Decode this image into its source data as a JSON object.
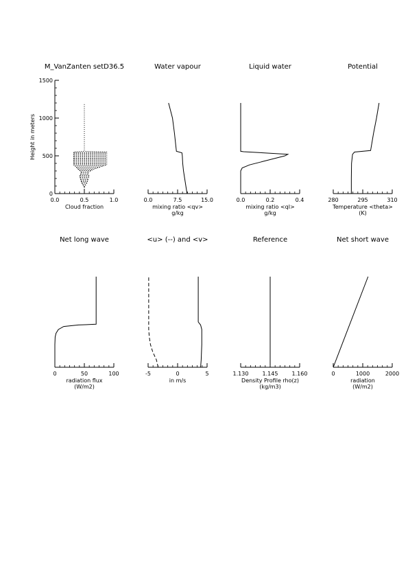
{
  "chart_data": [
    {
      "type": "line",
      "title": "M_VanZanten setD36.5",
      "xlabel": [
        "Cloud fraction"
      ],
      "ylabel": "Height in meters",
      "xlim": [
        0,
        1.0
      ],
      "ylim": [
        0,
        1500
      ],
      "xticks": [
        "0.0",
        "0.5",
        "1.0"
      ],
      "yticks": [
        "0",
        "500",
        "1000",
        "1500"
      ],
      "series": [
        {
          "style": "dotted",
          "points": [
            [
              0.5,
              0
            ],
            [
              0.5,
              80
            ],
            [
              0.45,
              150
            ],
            [
              0.42,
              230
            ],
            [
              0.45,
              280
            ],
            [
              0.4,
              320
            ],
            [
              0.35,
              360
            ],
            [
              0.32,
              380
            ],
            [
              0.32,
              420
            ],
            [
              0.32,
              460
            ],
            [
              0.32,
              500
            ],
            [
              0.32,
              550
            ],
            [
              0.5,
              560
            ],
            [
              0.5,
              1200
            ]
          ]
        },
        {
          "style": "dotted",
          "points": [
            [
              0.5,
              0
            ],
            [
              0.5,
              80
            ],
            [
              0.55,
              150
            ],
            [
              0.58,
              230
            ],
            [
              0.56,
              280
            ],
            [
              0.65,
              320
            ],
            [
              0.8,
              360
            ],
            [
              0.88,
              380
            ],
            [
              0.88,
              420
            ],
            [
              0.88,
              460
            ],
            [
              0.88,
              500
            ],
            [
              0.88,
              550
            ],
            [
              0.5,
              560
            ]
          ]
        }
      ],
      "hatch_levels": [
        380,
        400,
        420,
        440,
        460,
        480,
        500,
        520,
        540
      ]
    },
    {
      "type": "line",
      "title": "Water vapour",
      "xlabel": [
        "mixing ratio <qv>",
        "g/kg"
      ],
      "xlim": [
        0,
        15.0
      ],
      "ylim": [
        0,
        1500
      ],
      "xticks": [
        "0.0",
        "7.5",
        "15.0"
      ],
      "series": [
        {
          "style": "solid",
          "points": [
            [
              9.9,
              0
            ],
            [
              9.6,
              100
            ],
            [
              9.3,
              200
            ],
            [
              9.0,
              300
            ],
            [
              8.8,
              400
            ],
            [
              8.7,
              500
            ],
            [
              8.6,
              540
            ],
            [
              7.2,
              560
            ],
            [
              6.7,
              800
            ],
            [
              6.2,
              1000
            ],
            [
              5.2,
              1200
            ]
          ]
        }
      ]
    },
    {
      "type": "line",
      "title": "Liquid water",
      "xlabel": [
        "mixing ratio <ql>",
        "g/kg"
      ],
      "xlim": [
        0.0,
        0.4
      ],
      "ylim": [
        0,
        1500
      ],
      "xticks": [
        "0.0",
        "0.2",
        "0.4"
      ],
      "series": [
        {
          "style": "solid",
          "points": [
            [
              0,
              0
            ],
            [
              0,
              300
            ],
            [
              0.01,
              340
            ],
            [
              0.06,
              380
            ],
            [
              0.14,
              420
            ],
            [
              0.22,
              460
            ],
            [
              0.3,
              500
            ],
            [
              0.32,
              520
            ],
            [
              0.15,
              540
            ],
            [
              0.02,
              555
            ],
            [
              0,
              560
            ],
            [
              0,
              1200
            ]
          ]
        }
      ]
    },
    {
      "type": "line",
      "title": "Potential",
      "xlabel": [
        "Temperature <theta>",
        "(K)"
      ],
      "xlim": [
        280,
        310
      ],
      "ylim": [
        0,
        1500
      ],
      "xticks": [
        "280",
        "295",
        "310"
      ],
      "series": [
        {
          "style": "solid",
          "points": [
            [
              289.2,
              0
            ],
            [
              289.2,
              200
            ],
            [
              289.3,
              400
            ],
            [
              289.8,
              520
            ],
            [
              290.8,
              550
            ],
            [
              299,
              570
            ],
            [
              300.5,
              800
            ],
            [
              302.0,
              1000
            ],
            [
              303.3,
              1200
            ]
          ]
        }
      ]
    },
    {
      "type": "line",
      "title": "Net long wave",
      "xlabel": [
        "radiation flux",
        "(W/m2)"
      ],
      "xlim": [
        0,
        100
      ],
      "ylim": [
        0,
        1500
      ],
      "xticks": [
        "0",
        "50",
        "100"
      ],
      "series": [
        {
          "style": "solid",
          "points": [
            [
              0,
              0
            ],
            [
              0,
              300
            ],
            [
              0.5,
              400
            ],
            [
              2,
              450
            ],
            [
              6,
              500
            ],
            [
              15,
              540
            ],
            [
              40,
              560
            ],
            [
              70,
              570
            ],
            [
              70,
              1200
            ]
          ]
        }
      ]
    },
    {
      "type": "line",
      "title": "<u> (--) and <v>",
      "xlabel": [
        "in m/s"
      ],
      "xlim": [
        -5,
        5
      ],
      "ylim": [
        0,
        1500
      ],
      "xticks": [
        "-5",
        "0",
        "5"
      ],
      "series": [
        {
          "style": "dashed",
          "points": [
            [
              -3.3,
              0
            ],
            [
              -3.6,
              100
            ],
            [
              -4.2,
              200
            ],
            [
              -4.6,
              300
            ],
            [
              -4.8,
              400
            ],
            [
              -4.9,
              500
            ],
            [
              -4.9,
              1200
            ]
          ]
        },
        {
          "style": "solid",
          "points": [
            [
              3.9,
              0
            ],
            [
              4.0,
              100
            ],
            [
              4.1,
              300
            ],
            [
              4.1,
              500
            ],
            [
              3.9,
              560
            ],
            [
              3.5,
              600
            ],
            [
              3.5,
              1200
            ]
          ]
        }
      ]
    },
    {
      "type": "line",
      "title": "Reference",
      "xlabel": [
        "Density Profile rho(z)",
        "(kg/m3)"
      ],
      "xlim": [
        1.13,
        1.16
      ],
      "ylim": [
        0,
        1500
      ],
      "xticks": [
        "1.130",
        "1.145",
        "1.160"
      ],
      "series": [
        {
          "style": "solid",
          "points": [
            [
              1.145,
              0
            ],
            [
              1.145,
              1200
            ]
          ]
        }
      ]
    },
    {
      "type": "line",
      "title": "Net short wave",
      "xlabel": [
        "radiation",
        "(W/m2)"
      ],
      "xlim": [
        0,
        2000
      ],
      "ylim": [
        0,
        1500
      ],
      "xticks": [
        "0",
        "1000",
        "2000"
      ],
      "series": [
        {
          "style": "solid",
          "points": [
            [
              0,
              0
            ],
            [
              1180,
              1200
            ]
          ]
        }
      ]
    }
  ]
}
